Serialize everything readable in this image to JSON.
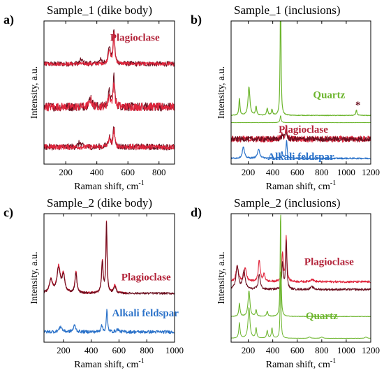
{
  "colors": {
    "plag_dark": "#6b1020",
    "plag_light": "#e0253c",
    "quartz": "#6cb52d",
    "alkali": "#2b72c9",
    "ann_plag": "#b3243a",
    "ann_quartz": "#6cb52d",
    "ann_alkali": "#2b72c9"
  },
  "chart_data": [
    {
      "type": "line",
      "panel_letter": "a)",
      "title": "Sample_1 (dike body)",
      "xlabel": "Raman shift, cm",
      "xlabel_sup": "-1",
      "ylabel": "Intensity, a.u.",
      "xlim": [
        60,
        900
      ],
      "ylim": [
        0,
        1
      ],
      "xticks": [
        200,
        400,
        600,
        800
      ],
      "xtick_labels": [
        "200",
        "400",
        "600",
        "800"
      ],
      "grid": false,
      "annotations": [
        {
          "text": "Plagioclase",
          "x": 645,
          "y": 0.86,
          "color": "ann_plag"
        }
      ],
      "series": [
        {
          "color": "plag_dark",
          "width": 1.1,
          "base": 0.7,
          "noise": 0.018,
          "x": [
            60,
            900
          ],
          "peaks": [
            [
              300,
              0.03,
              10
            ],
            [
              420,
              0.03,
              10
            ],
            [
              480,
              0.12,
              8
            ],
            [
              510,
              0.24,
              6
            ]
          ]
        },
        {
          "color": "plag_light",
          "width": 1.2,
          "base": 0.7,
          "noise": 0.012,
          "x": [
            60,
            900
          ],
          "peaks": [
            [
              480,
              0.1,
              8
            ],
            [
              510,
              0.21,
              6
            ]
          ]
        },
        {
          "color": "plag_dark",
          "width": 1.1,
          "base": 0.4,
          "noise": 0.03,
          "x": [
            60,
            900
          ],
          "peaks": [
            [
              360,
              0.07,
              10
            ],
            [
              480,
              0.1,
              8
            ],
            [
              510,
              0.22,
              6
            ]
          ]
        },
        {
          "color": "plag_light",
          "width": 1.2,
          "base": 0.4,
          "noise": 0.028,
          "x": [
            60,
            900
          ],
          "peaks": [
            [
              360,
              0.05,
              10
            ],
            [
              480,
              0.08,
              8
            ],
            [
              510,
              0.18,
              6
            ]
          ]
        },
        {
          "color": "plag_dark",
          "width": 1.1,
          "base": 0.12,
          "noise": 0.022,
          "x": [
            60,
            900
          ],
          "peaks": [
            [
              290,
              0.03,
              10
            ],
            [
              480,
              0.07,
              8
            ],
            [
              510,
              0.14,
              6
            ]
          ]
        },
        {
          "color": "plag_light",
          "width": 1.2,
          "base": 0.12,
          "noise": 0.018,
          "x": [
            60,
            900
          ],
          "peaks": [
            [
              480,
              0.06,
              8
            ],
            [
              510,
              0.12,
              6
            ]
          ]
        }
      ]
    },
    {
      "type": "line",
      "panel_letter": "b)",
      "title": "Sample_1 (inclusions)",
      "xlabel": "Raman shift, cm",
      "xlabel_sup": "-1",
      "ylabel": "Intensity, a.u.",
      "xlim": [
        60,
        1200
      ],
      "ylim": [
        0,
        1
      ],
      "xticks": [
        200,
        400,
        600,
        800,
        1000,
        1200
      ],
      "xtick_labels": [
        "200",
        "400",
        "600",
        "800",
        "1000",
        "1200"
      ],
      "grid": false,
      "annotations": [
        {
          "text": "Quartz",
          "x": 860,
          "y": 0.46,
          "color": "ann_quartz"
        },
        {
          "text": "*",
          "x": 1095,
          "y": 0.39,
          "color": "plag_dark"
        },
        {
          "text": "Plagioclase",
          "x": 650,
          "y": 0.22,
          "color": "ann_plag"
        },
        {
          "text": "Alkali feldspar",
          "x": 630,
          "y": 0.03,
          "color": "ann_alkali"
        }
      ],
      "series": [
        {
          "color": "quartz",
          "width": 1.2,
          "base": 0.34,
          "noise": 0.002,
          "x": [
            60,
            1200
          ],
          "peaks": [
            [
              128,
              0.12,
              5
            ],
            [
              206,
              0.2,
              9
            ],
            [
              264,
              0.06,
              6
            ],
            [
              355,
              0.05,
              6
            ],
            [
              394,
              0.04,
              6
            ],
            [
              464,
              0.94,
              4
            ],
            [
              1083,
              0.04,
              5
            ]
          ]
        },
        {
          "color": "quartz",
          "width": 1.0,
          "base": 0.29,
          "noise": 0.001,
          "x": [
            60,
            1200
          ],
          "peaks": [
            [
              464,
              0.05,
              5
            ]
          ]
        },
        {
          "color": "plag_light",
          "width": 1.1,
          "base": 0.175,
          "noise": 0.022,
          "x": [
            60,
            1200
          ],
          "peaks": [
            [
              480,
              0.04,
              8
            ],
            [
              510,
              0.08,
              6
            ]
          ]
        },
        {
          "color": "plag_dark",
          "width": 1.0,
          "base": 0.175,
          "noise": 0.018,
          "x": [
            60,
            1200
          ],
          "peaks": [
            [
              480,
              0.03,
              8
            ],
            [
              510,
              0.06,
              6
            ]
          ]
        },
        {
          "color": "alkali",
          "width": 1.2,
          "base": 0.04,
          "noise": 0.005,
          "x": [
            60,
            1200
          ],
          "peaks": [
            [
              160,
              0.08,
              10
            ],
            [
              285,
              0.06,
              12
            ],
            [
              475,
              0.05,
              6
            ],
            [
              513,
              0.13,
              5
            ]
          ]
        }
      ]
    },
    {
      "type": "line",
      "panel_letter": "c)",
      "title": "Sample_2 (dike body)",
      "xlabel": "Raman shift, cm",
      "xlabel_sup": "-1",
      "ylabel": "Intensity, a.u.",
      "xlim": [
        60,
        1000
      ],
      "ylim": [
        0,
        1
      ],
      "xticks": [
        200,
        400,
        600,
        800,
        1000
      ],
      "xtick_labels": [
        "200",
        "400",
        "600",
        "800",
        "1000"
      ],
      "grid": false,
      "annotations": [
        {
          "text": "Plagioclase",
          "x": 795,
          "y": 0.48,
          "color": "ann_plag"
        },
        {
          "text": "Alkali feldspar",
          "x": 790,
          "y": 0.2,
          "color": "ann_alkali"
        }
      ],
      "series": [
        {
          "color": "plag_light",
          "width": 1.3,
          "base": 0.38,
          "noise": 0.008,
          "x": [
            60,
            660
          ],
          "peaks": [
            [
              110,
              0.1,
              14
            ],
            [
              165,
              0.2,
              14
            ],
            [
              200,
              0.14,
              12
            ],
            [
              290,
              0.17,
              8
            ],
            [
              480,
              0.25,
              7
            ],
            [
              510,
              0.55,
              5
            ],
            [
              570,
              0.06,
              10
            ]
          ]
        },
        {
          "color": "plag_dark",
          "width": 1.1,
          "base": 0.38,
          "noise": 0.008,
          "x": [
            60,
            1000
          ],
          "peaks": [
            [
              110,
              0.1,
              14
            ],
            [
              165,
              0.19,
              14
            ],
            [
              200,
              0.13,
              12
            ],
            [
              290,
              0.16,
              8
            ],
            [
              480,
              0.24,
              7
            ],
            [
              510,
              0.54,
              5
            ],
            [
              570,
              0.05,
              10
            ]
          ]
        },
        {
          "color": "alkali",
          "width": 1.2,
          "base": 0.08,
          "noise": 0.012,
          "x": [
            60,
            1000
          ],
          "peaks": [
            [
              180,
              0.04,
              12
            ],
            [
              280,
              0.05,
              10
            ],
            [
              475,
              0.06,
              6
            ],
            [
              513,
              0.17,
              5
            ],
            [
              590,
              0.02,
              10
            ]
          ]
        }
      ]
    },
    {
      "type": "line",
      "panel_letter": "d)",
      "title": "Sample_2 (inclusions)",
      "xlabel": "Raman shift, cm",
      "xlabel_sup": "-1",
      "ylabel": "Intensity, a.u.",
      "xlim": [
        60,
        1200
      ],
      "ylim": [
        0,
        1
      ],
      "xticks": [
        200,
        400,
        600,
        800,
        1000,
        1200
      ],
      "xtick_labels": [
        "200",
        "400",
        "600",
        "800",
        "1000",
        "1200"
      ],
      "grid": false,
      "annotations": [
        {
          "text": "Plagioclase",
          "x": 860,
          "y": 0.6,
          "color": "ann_plag"
        },
        {
          "text": "Quartz",
          "x": 800,
          "y": 0.18,
          "color": "ann_quartz"
        }
      ],
      "series": [
        {
          "color": "plag_light",
          "width": 1.1,
          "base": 0.47,
          "noise": 0.008,
          "x": [
            60,
            1200
          ],
          "peaks": [
            [
              110,
              0.12,
              12
            ],
            [
              175,
              0.1,
              12
            ],
            [
              290,
              0.17,
              9
            ],
            [
              330,
              0.06,
              8
            ],
            [
              480,
              0.22,
              7
            ],
            [
              510,
              0.35,
              6
            ],
            [
              720,
              0.02,
              15
            ]
          ]
        },
        {
          "color": "plag_dark",
          "width": 1.1,
          "base": 0.41,
          "noise": 0.008,
          "x": [
            60,
            1200
          ],
          "peaks": [
            [
              110,
              0.18,
              12
            ],
            [
              165,
              0.14,
              12
            ],
            [
              290,
              0.12,
              9
            ],
            [
              480,
              0.2,
              7
            ],
            [
              510,
              0.38,
              6
            ],
            [
              720,
              0.02,
              15
            ]
          ]
        },
        {
          "color": "quartz",
          "width": 1.1,
          "base": 0.2,
          "noise": 0.002,
          "x": [
            60,
            1200
          ],
          "peaks": [
            [
              128,
              0.1,
              6
            ],
            [
              206,
              0.2,
              9
            ],
            [
              264,
              0.05,
              6
            ],
            [
              355,
              0.04,
              6
            ],
            [
              464,
              0.84,
              4
            ]
          ]
        },
        {
          "color": "quartz",
          "width": 1.0,
          "base": 0.03,
          "noise": 0.001,
          "x": [
            60,
            1200
          ],
          "peaks": [
            [
              128,
              0.12,
              6
            ],
            [
              206,
              0.24,
              9
            ],
            [
              264,
              0.08,
              6
            ],
            [
              355,
              0.06,
              6
            ],
            [
              394,
              0.08,
              6
            ],
            [
              464,
              0.55,
              4
            ],
            [
              700,
              0.01,
              10
            ],
            [
              800,
              0.01,
              10
            ],
            [
              1160,
              0.01,
              10
            ]
          ]
        }
      ]
    }
  ]
}
